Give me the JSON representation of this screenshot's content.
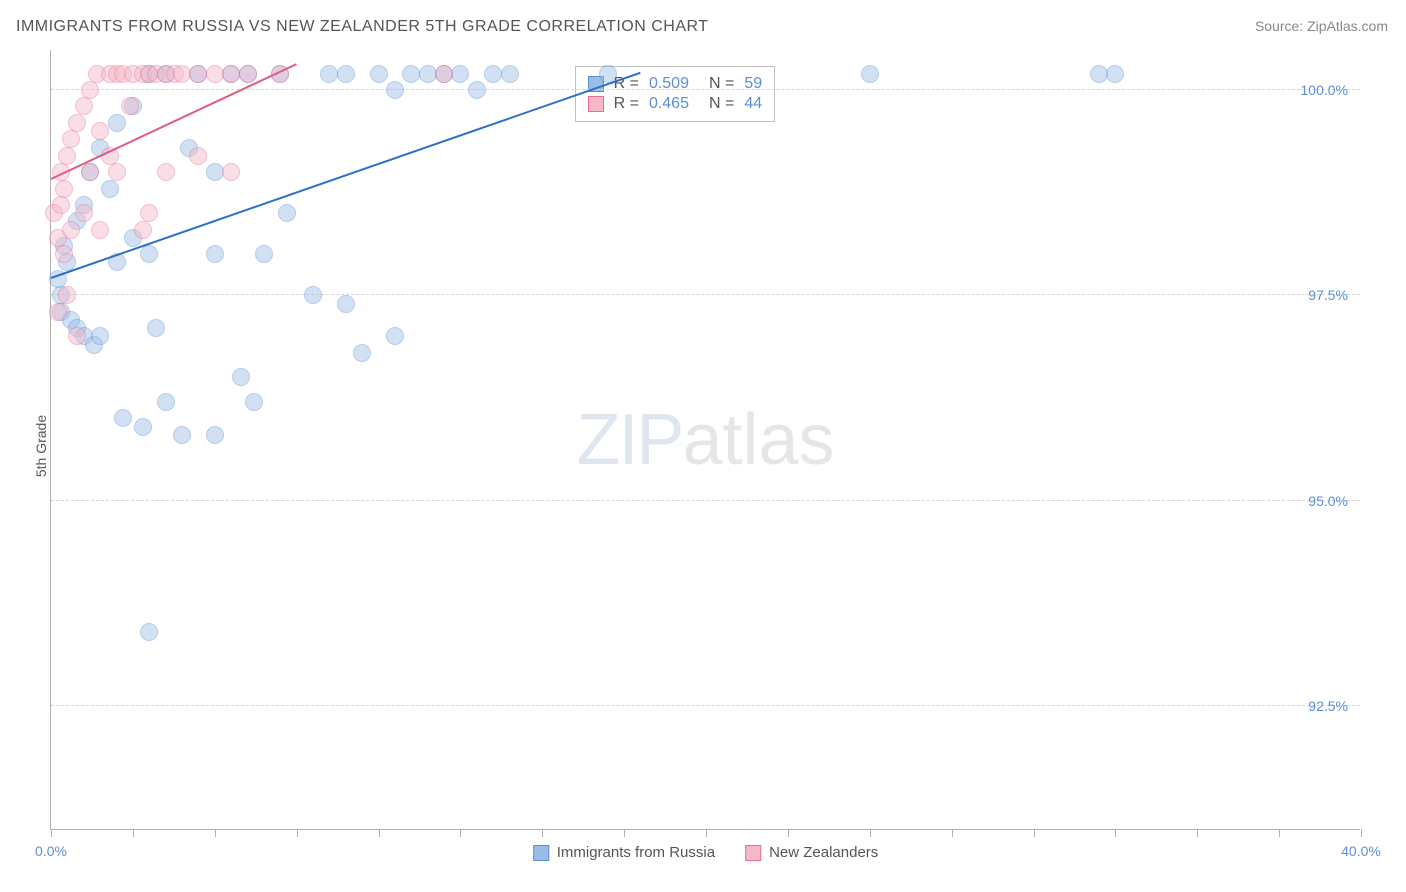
{
  "title": "IMMIGRANTS FROM RUSSIA VS NEW ZEALANDER 5TH GRADE CORRELATION CHART",
  "source": "Source: ZipAtlas.com",
  "y_axis_title": "5th Grade",
  "watermark": {
    "part1": "ZIP",
    "part2": "atlas"
  },
  "chart": {
    "type": "scatter",
    "background_color": "#ffffff",
    "grid_color": "#d5d5d5",
    "axis_color": "#b0b0b0",
    "tick_label_color": "#5a8fd6",
    "title_fontsize": 16,
    "label_fontsize": 14,
    "xlim": [
      0,
      40
    ],
    "ylim": [
      91,
      100.5
    ],
    "x_ticks": [
      0,
      2.5,
      5,
      7.5,
      10,
      12.5,
      15,
      17.5,
      20,
      22.5,
      25,
      27.5,
      30,
      32.5,
      35,
      37.5,
      40
    ],
    "x_tick_labels": {
      "0": "0.0%",
      "40": "40.0%"
    },
    "y_gridlines": [
      92.5,
      95.0,
      97.5,
      100.0
    ],
    "y_tick_labels": [
      "92.5%",
      "95.0%",
      "97.5%",
      "100.0%"
    ],
    "marker_radius": 9,
    "marker_opacity": 0.45,
    "series": [
      {
        "name": "Immigrants from Russia",
        "color_fill": "#9bbce6",
        "color_stroke": "#5a8fd6",
        "trend_color": "#2f6fc7",
        "trend": {
          "x1": 0,
          "y1": 97.7,
          "x2": 18,
          "y2": 100.2
        },
        "stats": {
          "R": "0.509",
          "N": "59"
        },
        "points": [
          [
            0.2,
            97.7
          ],
          [
            0.3,
            97.5
          ],
          [
            0.3,
            97.3
          ],
          [
            0.4,
            98.1
          ],
          [
            0.5,
            97.9
          ],
          [
            0.6,
            97.2
          ],
          [
            0.8,
            98.4
          ],
          [
            0.8,
            97.1
          ],
          [
            1.0,
            98.6
          ],
          [
            1.0,
            97.0
          ],
          [
            1.2,
            99.0
          ],
          [
            1.3,
            96.9
          ],
          [
            1.5,
            99.3
          ],
          [
            1.5,
            97.0
          ],
          [
            1.8,
            98.8
          ],
          [
            2.0,
            99.6
          ],
          [
            2.0,
            97.9
          ],
          [
            2.2,
            96.0
          ],
          [
            2.5,
            99.8
          ],
          [
            2.5,
            98.2
          ],
          [
            2.8,
            95.9
          ],
          [
            3.0,
            100.2
          ],
          [
            3.0,
            98.0
          ],
          [
            3.2,
            97.1
          ],
          [
            3.5,
            100.2
          ],
          [
            3.5,
            96.2
          ],
          [
            3.0,
            93.4
          ],
          [
            4.0,
            95.8
          ],
          [
            4.2,
            99.3
          ],
          [
            4.5,
            100.2
          ],
          [
            5.0,
            99.0
          ],
          [
            5.0,
            98.0
          ],
          [
            5.0,
            95.8
          ],
          [
            5.5,
            100.2
          ],
          [
            5.8,
            96.5
          ],
          [
            6.0,
            100.2
          ],
          [
            6.2,
            96.2
          ],
          [
            6.5,
            98.0
          ],
          [
            7.0,
            100.2
          ],
          [
            7.2,
            98.5
          ],
          [
            8.0,
            97.5
          ],
          [
            8.5,
            100.2
          ],
          [
            9.0,
            97.4
          ],
          [
            9.0,
            100.2
          ],
          [
            9.5,
            96.8
          ],
          [
            10.0,
            100.2
          ],
          [
            10.5,
            100.0
          ],
          [
            10.5,
            97.0
          ],
          [
            11.0,
            100.2
          ],
          [
            11.5,
            100.2
          ],
          [
            12.0,
            100.2
          ],
          [
            12.5,
            100.2
          ],
          [
            13.0,
            100.0
          ],
          [
            13.5,
            100.2
          ],
          [
            14.0,
            100.2
          ],
          [
            17.0,
            100.2
          ],
          [
            25.0,
            100.2
          ],
          [
            32.0,
            100.2
          ],
          [
            32.5,
            100.2
          ]
        ]
      },
      {
        "name": "New Zealanders",
        "color_fill": "#f4b8c8",
        "color_stroke": "#e76f94",
        "trend_color": "#e05a82",
        "trend": {
          "x1": 0,
          "y1": 98.9,
          "x2": 7.5,
          "y2": 100.3
        },
        "stats": {
          "R": "0.465",
          "N": "44"
        },
        "points": [
          [
            0.1,
            98.5
          ],
          [
            0.2,
            98.2
          ],
          [
            0.2,
            97.3
          ],
          [
            0.3,
            99.0
          ],
          [
            0.3,
            98.6
          ],
          [
            0.4,
            98.0
          ],
          [
            0.4,
            98.8
          ],
          [
            0.5,
            99.2
          ],
          [
            0.5,
            97.5
          ],
          [
            0.6,
            99.4
          ],
          [
            0.6,
            98.3
          ],
          [
            0.8,
            99.6
          ],
          [
            0.8,
            97.0
          ],
          [
            1.0,
            99.8
          ],
          [
            1.0,
            98.5
          ],
          [
            1.2,
            100.0
          ],
          [
            1.2,
            99.0
          ],
          [
            1.4,
            100.2
          ],
          [
            1.5,
            99.5
          ],
          [
            1.5,
            98.3
          ],
          [
            1.8,
            100.2
          ],
          [
            1.8,
            99.2
          ],
          [
            2.0,
            100.2
          ],
          [
            2.0,
            99.0
          ],
          [
            2.2,
            100.2
          ],
          [
            2.4,
            99.8
          ],
          [
            2.5,
            100.2
          ],
          [
            2.8,
            100.2
          ],
          [
            2.8,
            98.3
          ],
          [
            3.0,
            100.2
          ],
          [
            3.0,
            98.5
          ],
          [
            3.2,
            100.2
          ],
          [
            3.5,
            100.2
          ],
          [
            3.5,
            99.0
          ],
          [
            3.8,
            100.2
          ],
          [
            4.0,
            100.2
          ],
          [
            4.5,
            100.2
          ],
          [
            4.5,
            99.2
          ],
          [
            5.0,
            100.2
          ],
          [
            5.5,
            100.2
          ],
          [
            5.5,
            99.0
          ],
          [
            6.0,
            100.2
          ],
          [
            7.0,
            100.2
          ],
          [
            12.0,
            100.2
          ]
        ]
      }
    ],
    "stats_box": {
      "left_pct": 40,
      "top_pct": 2
    },
    "legend": {
      "items": [
        {
          "label": "Immigrants from Russia",
          "fill": "#9bbce6",
          "stroke": "#5a8fd6"
        },
        {
          "label": "New Zealanders",
          "fill": "#f4b8c8",
          "stroke": "#e76f94"
        }
      ]
    }
  }
}
